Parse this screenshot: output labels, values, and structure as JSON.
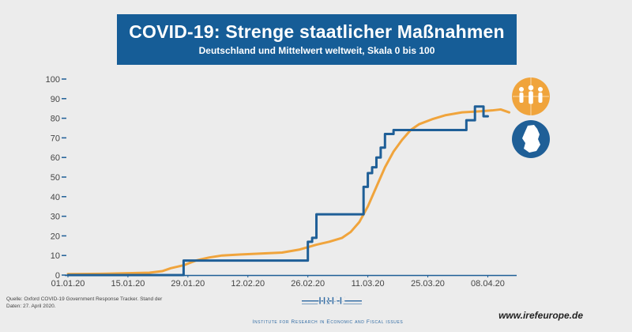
{
  "header": {
    "title": "COVID-19: Strenge staatlicher Maßnahmen",
    "subtitle": "Deutschland und Mittelwert weltweit, Skala 0 bis 100"
  },
  "footer": {
    "source": "Quelle: Oxford COVID-19 Government Response Tracker. Stand der Daten: 27. April 2020.",
    "logo_text": "IREF",
    "tagline": "Institute for Research in Economic and Fiscal issues",
    "website": "www.irefeurope.de"
  },
  "legend_icons": {
    "world": "people-globe-icon",
    "germany": "germany-map-icon"
  },
  "colors": {
    "germany": "#1f5f97",
    "world": "#f0a43c",
    "header_bg": "#165d97",
    "background": "#ececec"
  },
  "chart_data": {
    "type": "line",
    "title": "COVID-19: Strenge staatlicher Maßnahmen",
    "subtitle": "Deutschland und Mittelwert weltweit, Skala 0 bis 100",
    "xlabel": "",
    "ylabel": "",
    "ylim": [
      0,
      100
    ],
    "yticks": [
      0,
      10,
      20,
      30,
      40,
      50,
      60,
      70,
      80,
      90,
      100
    ],
    "xlim": [
      "2020-01-01",
      "2020-04-14"
    ],
    "xticks": [
      {
        "date": "2020-01-01",
        "label": "01.01.20"
      },
      {
        "date": "2020-01-15",
        "label": "15.01.20"
      },
      {
        "date": "2020-01-29",
        "label": "29.01.20"
      },
      {
        "date": "2020-02-12",
        "label": "12.02.20"
      },
      {
        "date": "2020-02-26",
        "label": "26.02.20"
      },
      {
        "date": "2020-03-11",
        "label": "11.03.20"
      },
      {
        "date": "2020-03-25",
        "label": "25.03.20"
      },
      {
        "date": "2020-04-08",
        "label": "08.04.20"
      }
    ],
    "grid": false,
    "series": [
      {
        "key": "germany",
        "color": "#1f5f97",
        "step": true,
        "points": [
          [
            "2020-01-01",
            0
          ],
          [
            "2020-01-28",
            7.4
          ],
          [
            "2020-02-26",
            17
          ],
          [
            "2020-02-27",
            19
          ],
          [
            "2020-02-28",
            31
          ],
          [
            "2020-03-10",
            45
          ],
          [
            "2020-03-11",
            52
          ],
          [
            "2020-03-12",
            55
          ],
          [
            "2020-03-13",
            60
          ],
          [
            "2020-03-14",
            65
          ],
          [
            "2020-03-15",
            72
          ],
          [
            "2020-03-17",
            74
          ],
          [
            "2020-04-03",
            79
          ],
          [
            "2020-04-05",
            86
          ],
          [
            "2020-04-07",
            81
          ],
          [
            "2020-04-08",
            81
          ]
        ]
      },
      {
        "key": "world",
        "color": "#f0a43c",
        "step": false,
        "points": [
          [
            "2020-01-01",
            0.5
          ],
          [
            "2020-01-10",
            0.7
          ],
          [
            "2020-01-20",
            1.2
          ],
          [
            "2020-01-23",
            2
          ],
          [
            "2020-01-25",
            3.5
          ],
          [
            "2020-01-28",
            5
          ],
          [
            "2020-01-31",
            7.5
          ],
          [
            "2020-02-03",
            9
          ],
          [
            "2020-02-06",
            10
          ],
          [
            "2020-02-10",
            10.5
          ],
          [
            "2020-02-15",
            11
          ],
          [
            "2020-02-20",
            11.5
          ],
          [
            "2020-02-24",
            13
          ],
          [
            "2020-02-28",
            15.5
          ],
          [
            "2020-03-02",
            17
          ],
          [
            "2020-03-05",
            19
          ],
          [
            "2020-03-07",
            22
          ],
          [
            "2020-03-09",
            27
          ],
          [
            "2020-03-11",
            35
          ],
          [
            "2020-03-13",
            45
          ],
          [
            "2020-03-15",
            55
          ],
          [
            "2020-03-17",
            63
          ],
          [
            "2020-03-19",
            69
          ],
          [
            "2020-03-21",
            74
          ],
          [
            "2020-03-23",
            77
          ],
          [
            "2020-03-26",
            79.5
          ],
          [
            "2020-03-29",
            81.5
          ],
          [
            "2020-04-02",
            83
          ],
          [
            "2020-04-06",
            83.5
          ],
          [
            "2020-04-09",
            84
          ],
          [
            "2020-04-11",
            84.5
          ],
          [
            "2020-04-13",
            83
          ]
        ]
      }
    ]
  }
}
